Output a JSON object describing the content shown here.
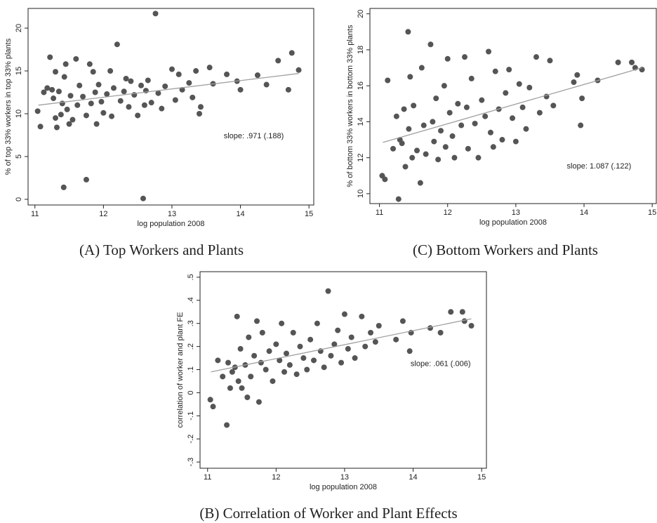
{
  "chart_data": [
    {
      "type": "scatter",
      "caption": "(A) Top Workers and Plants",
      "xlabel": "log population 2008",
      "ylabel": "% of top 33% workers in top 33% plants",
      "annotation": "slope: .971 (.188)",
      "xlim": [
        10.9,
        15.07
      ],
      "ylim": [
        -0.66,
        22.3
      ],
      "xticks": [
        11,
        12,
        13,
        14,
        15
      ],
      "yticks": [
        0,
        5,
        10,
        15,
        20
      ],
      "x": [
        11.04,
        11.08,
        11.13,
        11.18,
        11.22,
        11.25,
        11.27,
        11.3,
        11.3,
        11.32,
        11.35,
        11.38,
        11.4,
        11.42,
        11.43,
        11.45,
        11.47,
        11.5,
        11.52,
        11.55,
        11.6,
        11.62,
        11.65,
        11.7,
        11.75,
        11.75,
        11.8,
        11.82,
        11.85,
        11.88,
        11.9,
        11.93,
        11.97,
        12.0,
        12.05,
        12.1,
        12.12,
        12.15,
        12.2,
        12.25,
        12.3,
        12.33,
        12.37,
        12.4,
        12.45,
        12.5,
        12.55,
        12.58,
        12.6,
        12.62,
        12.65,
        12.7,
        12.76,
        12.8,
        12.85,
        12.9,
        13.0,
        13.05,
        13.1,
        13.15,
        13.25,
        13.3,
        13.35,
        13.4,
        13.42,
        13.55,
        13.6,
        13.8,
        13.95,
        14.0,
        14.25,
        14.38,
        14.55,
        14.7,
        14.75,
        14.85
      ],
      "series": [
        {
          "color": "#555555",
          "values": [
            10.3,
            8.5,
            12.5,
            13.0,
            16.6,
            12.8,
            11.8,
            14.9,
            9.5,
            8.4,
            12.6,
            9.9,
            11.2,
            1.4,
            14.3,
            15.8,
            10.5,
            8.8,
            12.1,
            9.3,
            16.4,
            11.0,
            13.3,
            12.0,
            2.3,
            9.8,
            15.8,
            11.2,
            14.9,
            12.5,
            8.8,
            13.4,
            11.4,
            10.1,
            12.3,
            15.0,
            9.7,
            13.0,
            18.1,
            11.5,
            12.6,
            14.1,
            10.8,
            13.8,
            12.2,
            9.8,
            13.3,
            0.1,
            11.0,
            12.7,
            13.9,
            11.3,
            21.7,
            12.4,
            10.6,
            13.2,
            15.2,
            11.6,
            14.6,
            12.8,
            13.6,
            11.9,
            15.0,
            10.0,
            10.8,
            15.4,
            13.5,
            14.6,
            13.8,
            12.8,
            14.5,
            13.4,
            16.2,
            12.8,
            17.1,
            15.1
          ]
        }
      ],
      "fit_line": {
        "color": "#a0a0a0",
        "x": [
          11.05,
          14.85
        ],
        "y": [
          11.0,
          14.7
        ]
      }
    },
    {
      "type": "scatter",
      "caption": "(C) Bottom Workers and Plants",
      "xlabel": "log population 2008",
      "ylabel": "% of bottom 33% workers in bottom 33% plants",
      "annotation": "slope: 1.087 (.122)",
      "xlim": [
        10.86,
        15.06
      ],
      "ylim": [
        9.45,
        20.3
      ],
      "xticks": [
        11,
        12,
        13,
        14,
        15
      ],
      "yticks": [
        10,
        12,
        14,
        16,
        18,
        20
      ],
      "x": [
        11.04,
        11.08,
        11.12,
        11.2,
        11.25,
        11.28,
        11.3,
        11.33,
        11.36,
        11.38,
        11.42,
        11.43,
        11.45,
        11.48,
        11.5,
        11.55,
        11.6,
        11.62,
        11.65,
        11.68,
        11.75,
        11.78,
        11.8,
        11.83,
        11.86,
        11.9,
        11.95,
        11.97,
        12.0,
        12.03,
        12.07,
        12.1,
        12.15,
        12.2,
        12.25,
        12.28,
        12.3,
        12.35,
        12.4,
        12.45,
        12.5,
        12.55,
        12.6,
        12.63,
        12.67,
        12.7,
        12.75,
        12.8,
        12.85,
        12.9,
        12.95,
        13.0,
        13.05,
        13.1,
        13.15,
        13.2,
        13.3,
        13.35,
        13.45,
        13.5,
        13.55,
        13.85,
        13.9,
        13.95,
        13.97,
        14.2,
        14.5,
        14.7,
        14.75,
        14.85
      ],
      "series": [
        {
          "color": "#555555",
          "values": [
            11.0,
            10.8,
            16.3,
            12.5,
            14.3,
            9.7,
            13.0,
            12.8,
            14.7,
            11.5,
            19.0,
            13.6,
            16.5,
            12.0,
            14.9,
            12.4,
            10.6,
            17.0,
            13.8,
            12.2,
            18.3,
            14.0,
            12.9,
            15.3,
            11.9,
            13.5,
            16.0,
            12.6,
            17.5,
            14.5,
            13.2,
            12.0,
            15.0,
            13.8,
            17.6,
            14.8,
            12.5,
            16.4,
            13.9,
            12.0,
            15.2,
            14.3,
            17.9,
            13.4,
            12.6,
            16.8,
            14.7,
            13.0,
            15.6,
            16.9,
            14.2,
            12.9,
            16.1,
            14.8,
            13.6,
            15.9,
            17.6,
            14.5,
            15.4,
            17.4,
            14.9,
            16.2,
            16.6,
            13.8,
            15.3,
            16.3,
            17.3,
            17.3,
            17.0,
            16.9
          ]
        }
      ],
      "fit_line": {
        "color": "#a0a0a0",
        "x": [
          11.05,
          14.85
        ],
        "y": [
          12.85,
          17.0
        ]
      }
    },
    {
      "type": "scatter",
      "caption": "(B) Correlation of Worker and Plant Effects",
      "xlabel": "log population 2008",
      "ylabel": "correlation of worker and plant FE",
      "annotation": "slope: .061 (.006)",
      "xlim": [
        10.89,
        15.07
      ],
      "ylim": [
        -0.327,
        0.524
      ],
      "xticks": [
        11,
        12,
        13,
        14,
        15
      ],
      "yticks": [
        {
          "value": -0.3,
          "label": "-.3"
        },
        {
          "value": -0.2,
          "label": "-.2"
        },
        {
          "value": -0.1,
          "label": "-.1"
        },
        0,
        {
          "value": 0.1,
          "label": ".1"
        },
        {
          "value": 0.2,
          "label": ".2"
        },
        {
          "value": 0.3,
          "label": ".3"
        },
        {
          "value": 0.4,
          "label": ".4"
        },
        {
          "value": 0.5,
          "label": ".5"
        }
      ],
      "x": [
        11.04,
        11.08,
        11.15,
        11.22,
        11.28,
        11.3,
        11.33,
        11.36,
        11.4,
        11.43,
        11.45,
        11.48,
        11.5,
        11.55,
        11.58,
        11.6,
        11.63,
        11.68,
        11.72,
        11.75,
        11.78,
        11.8,
        11.85,
        11.9,
        11.95,
        12.0,
        12.05,
        12.08,
        12.12,
        12.15,
        12.2,
        12.25,
        12.3,
        12.35,
        12.4,
        12.45,
        12.5,
        12.55,
        12.6,
        12.65,
        12.7,
        12.76,
        12.8,
        12.85,
        12.9,
        12.95,
        13.0,
        13.05,
        13.1,
        13.15,
        13.25,
        13.3,
        13.38,
        13.45,
        13.5,
        13.75,
        13.85,
        13.95,
        13.97,
        14.25,
        14.4,
        14.55,
        14.72,
        14.75,
        14.85
      ],
      "series": [
        {
          "color": "#555555",
          "values": [
            -0.03,
            -0.06,
            0.14,
            0.07,
            -0.14,
            0.13,
            0.02,
            0.09,
            0.11,
            0.33,
            0.05,
            0.19,
            0.02,
            0.12,
            -0.02,
            0.24,
            0.07,
            0.16,
            0.31,
            -0.04,
            0.13,
            0.26,
            0.1,
            0.18,
            0.05,
            0.21,
            0.14,
            0.3,
            0.09,
            0.17,
            0.12,
            0.26,
            0.08,
            0.2,
            0.15,
            0.1,
            0.23,
            0.14,
            0.3,
            0.18,
            0.11,
            0.44,
            0.16,
            0.21,
            0.27,
            0.13,
            0.34,
            0.19,
            0.24,
            0.15,
            0.33,
            0.2,
            0.26,
            0.22,
            0.29,
            0.23,
            0.31,
            0.18,
            0.26,
            0.28,
            0.26,
            0.35,
            0.35,
            0.31,
            0.29
          ]
        }
      ],
      "fit_line": {
        "color": "#a0a0a0",
        "x": [
          11.05,
          14.85
        ],
        "y": [
          0.09,
          0.32
        ]
      }
    }
  ]
}
